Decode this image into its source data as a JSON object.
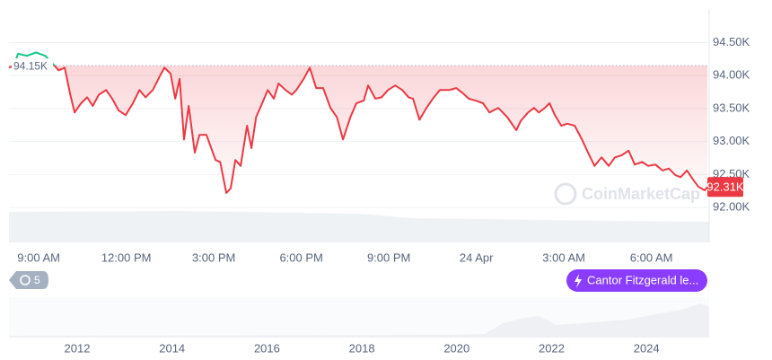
{
  "chart_data": {
    "type": "line",
    "x": [
      -1.02,
      -0.86,
      -0.71,
      -0.4,
      -0.09,
      0.22,
      0.52,
      0.68,
      0.89,
      1.08,
      1.23,
      1.45,
      1.66,
      1.85,
      2.06,
      2.31,
      2.52,
      2.74,
      2.98,
      3.23,
      3.45,
      3.66,
      3.91,
      4.15,
      4.31,
      4.52,
      4.68,
      4.83,
      4.98,
      5.14,
      5.35,
      5.51,
      5.75,
      6.06,
      6.22,
      6.43,
      6.58,
      6.74,
      6.92,
      7.14,
      7.29,
      7.45,
      7.66,
      7.85,
      8.06,
      8.22,
      8.46,
      8.68,
      8.83,
      9.08,
      9.29,
      9.51,
      9.75,
      10.0,
      10.22,
      10.43,
      10.68,
      10.89,
      11.14,
      11.29,
      11.54,
      11.75,
      11.97,
      12.22,
      12.46,
      12.68,
      12.83,
      13.05,
      13.29,
      13.51,
      13.75,
      14.06,
      14.31,
      14.52,
      14.74,
      14.98,
      15.23,
      15.45,
      15.75,
      16.06,
      16.37,
      16.52,
      16.77,
      16.98,
      17.14,
      17.35,
      17.51,
      17.69,
      17.91,
      18.12,
      18.37,
      18.62,
      18.83,
      19.05,
      19.29,
      19.54,
      19.75,
      19.97,
      20.22,
      20.43,
      20.68,
      20.89,
      21.14,
      21.38,
      21.6,
      21.82,
      22.0,
      22.22,
      22.43,
      22.62,
      22.83,
      22.92
    ],
    "series": [
      {
        "name": "Price",
        "color": "#ea3943",
        "color_up": "#16c784",
        "values": [
          94120,
          94150,
          94330,
          94300,
          94350,
          94300,
          94160,
          94080,
          94120,
          93710,
          93440,
          93580,
          93670,
          93540,
          93710,
          93780,
          93650,
          93470,
          93400,
          93580,
          93780,
          93670,
          93780,
          93990,
          94120,
          94030,
          93650,
          93950,
          93030,
          93540,
          92830,
          93100,
          93100,
          92720,
          92690,
          92220,
          92290,
          92720,
          92630,
          93240,
          92900,
          93370,
          93580,
          93780,
          93650,
          93880,
          93780,
          93710,
          93780,
          93950,
          94120,
          93810,
          93810,
          93510,
          93370,
          93030,
          93370,
          93580,
          93620,
          93850,
          93650,
          93670,
          93780,
          93850,
          93780,
          93670,
          93650,
          93330,
          93510,
          93650,
          93780,
          93780,
          93810,
          93740,
          93650,
          93620,
          93580,
          93440,
          93510,
          93370,
          93170,
          93310,
          93440,
          93510,
          93440,
          93510,
          93580,
          93400,
          93240,
          93270,
          93240,
          93030,
          92830,
          92630,
          92760,
          92630,
          92760,
          92790,
          92860,
          92650,
          92690,
          92630,
          92650,
          92560,
          92590,
          92490,
          92460,
          92560,
          92420,
          92310,
          92260,
          92310
        ]
      }
    ],
    "xlim": [
      -1.02,
      22.98
    ],
    "xticks": [
      {
        "value": 0,
        "label": "9:00 AM"
      },
      {
        "value": 3,
        "label": "12:00 PM"
      },
      {
        "value": 6,
        "label": "3:00 PM"
      },
      {
        "value": 9,
        "label": "6:00 PM"
      },
      {
        "value": 12,
        "label": "9:00 PM"
      },
      {
        "value": 15,
        "label": "24 Apr"
      },
      {
        "value": 18,
        "label": "3:00 AM"
      },
      {
        "value": 21,
        "label": "6:00 AM"
      }
    ],
    "ylim": [
      91470,
      95010
    ],
    "yticks": [
      {
        "value": 92000,
        "label": "92.00K"
      },
      {
        "value": 92500,
        "label": "92.50K"
      },
      {
        "value": 93000,
        "label": "93.00K"
      },
      {
        "value": 93500,
        "label": "93.50K"
      },
      {
        "value": 94000,
        "label": "94.00K"
      },
      {
        "value": 94500,
        "label": "94.50K"
      }
    ],
    "grid": true,
    "reference_price": {
      "value": 94150,
      "label": "94.15K"
    },
    "current_price": {
      "value": 92310,
      "label": "92.31K"
    },
    "watermark": "CoinMarketCap",
    "history_count": "5",
    "news_badge": "Cantor Fitzgerald le...",
    "navigator_labels": [
      "2012",
      "2014",
      "2016",
      "2018",
      "2020",
      "2022",
      "2024"
    ]
  }
}
